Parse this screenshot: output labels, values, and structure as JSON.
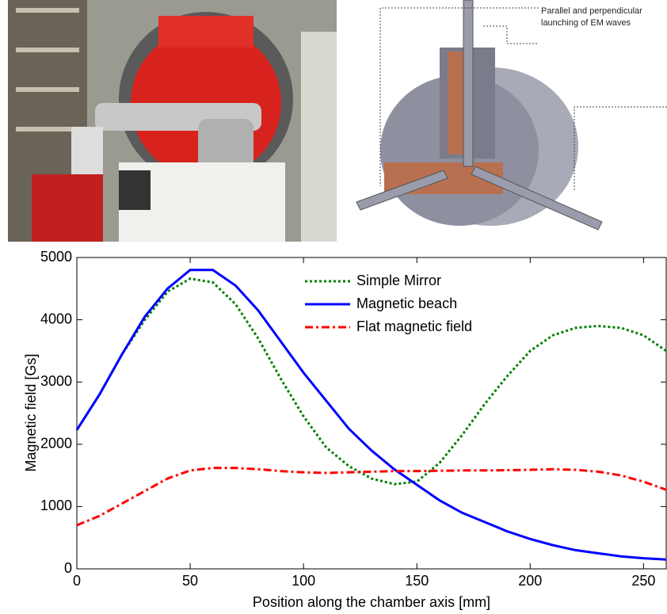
{
  "diagram": {
    "annotation_lines": [
      "Parallel and perpendicular",
      "launching of EM waves"
    ]
  },
  "chart_data": {
    "type": "line",
    "x_label": "Position along the chamber axis [mm]",
    "y_label": "Magnetic field [Gs]",
    "x": [
      0,
      10,
      20,
      30,
      40,
      50,
      60,
      70,
      80,
      90,
      100,
      110,
      120,
      130,
      140,
      150,
      160,
      170,
      180,
      190,
      200,
      210,
      220,
      230,
      240,
      250,
      260
    ],
    "series": [
      {
        "name": "Simple Mirror",
        "color": "#008000",
        "dash": "dotted",
        "values": [
          2230,
          2800,
          3450,
          4000,
          4450,
          4660,
          4600,
          4250,
          3700,
          3050,
          2450,
          1950,
          1650,
          1450,
          1360,
          1400,
          1700,
          2150,
          2650,
          3100,
          3500,
          3750,
          3870,
          3900,
          3870,
          3750,
          3500
        ]
      },
      {
        "name": "Magnetic beach",
        "color": "#0000ff",
        "dash": "solid",
        "values": [
          2230,
          2800,
          3450,
          4050,
          4500,
          4800,
          4800,
          4550,
          4150,
          3650,
          3150,
          2700,
          2250,
          1900,
          1600,
          1350,
          1100,
          900,
          750,
          600,
          480,
          380,
          300,
          250,
          200,
          170,
          150
        ]
      },
      {
        "name": "Flat magnetic field",
        "color": "#ff0000",
        "dash": "dashdot",
        "values": [
          700,
          850,
          1050,
          1250,
          1450,
          1580,
          1620,
          1620,
          1600,
          1570,
          1550,
          1540,
          1550,
          1560,
          1570,
          1570,
          1575,
          1580,
          1580,
          1585,
          1590,
          1600,
          1590,
          1560,
          1500,
          1400,
          1270
        ]
      }
    ],
    "xlim": [
      0,
      260
    ],
    "xticks": [
      0,
      50,
      100,
      150,
      200,
      250
    ],
    "ylim": [
      0,
      5000
    ],
    "yticks": [
      0,
      1000,
      2000,
      3000,
      4000,
      5000
    ],
    "grid": false,
    "legend": "top"
  }
}
